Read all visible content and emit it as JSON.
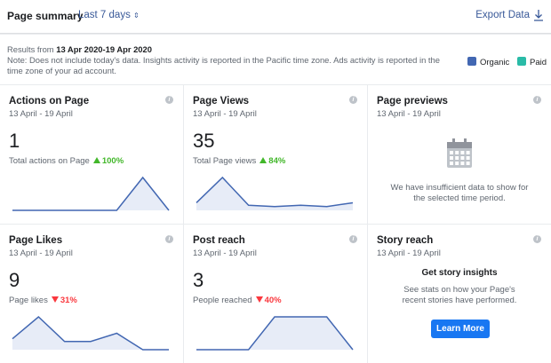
{
  "header": {
    "title": "Page summary",
    "range": "Last 7 days",
    "export": "Export Data"
  },
  "info": {
    "results_prefix": "Results from",
    "results_range": "13 Apr 2020-19 Apr 2020",
    "note": "Note: Does not include today's data. Insights activity is reported in the Pacific time zone. Ads activity is reported in the time zone of your ad account."
  },
  "legend": [
    {
      "name": "Organic",
      "color": "#4267b2"
    },
    {
      "name": "Paid",
      "color": "#2abba7"
    }
  ],
  "cards": [
    {
      "title": "Actions on Page",
      "period": "13 April - 19 April",
      "value": 1,
      "label": "Total actions on Page",
      "change": "100%",
      "trend": "up",
      "sparkline": [
        0,
        0,
        0,
        0,
        0,
        1,
        0
      ]
    },
    {
      "title": "Page Views",
      "period": "13 April - 19 April",
      "value": 35,
      "label": "Total Page views",
      "change": "84%",
      "trend": "up",
      "sparkline": [
        3,
        13,
        2,
        1.5,
        2,
        1.5,
        3
      ]
    },
    {
      "title": "Page previews",
      "period": "13 April - 19 April",
      "message": "We have insufficient data to show for the selected time period."
    },
    {
      "title": "Page Likes",
      "period": "13 April - 19 April",
      "value": 9,
      "label": "Page likes",
      "change": "31%",
      "trend": "down",
      "sparkline": [
        2,
        6,
        1.5,
        1.5,
        3,
        0,
        0
      ]
    },
    {
      "title": "Post reach",
      "period": "13 April - 19 April",
      "value": 3,
      "label": "People reached",
      "change": "40%",
      "trend": "down",
      "sparkline": [
        0,
        0,
        0,
        1,
        1,
        1,
        0
      ]
    },
    {
      "title": "Story reach",
      "period": "13 April - 19 April",
      "heading": "Get story insights",
      "message": "See stats on how your Page's recent stories have performed.",
      "button": "Learn More"
    }
  ]
}
